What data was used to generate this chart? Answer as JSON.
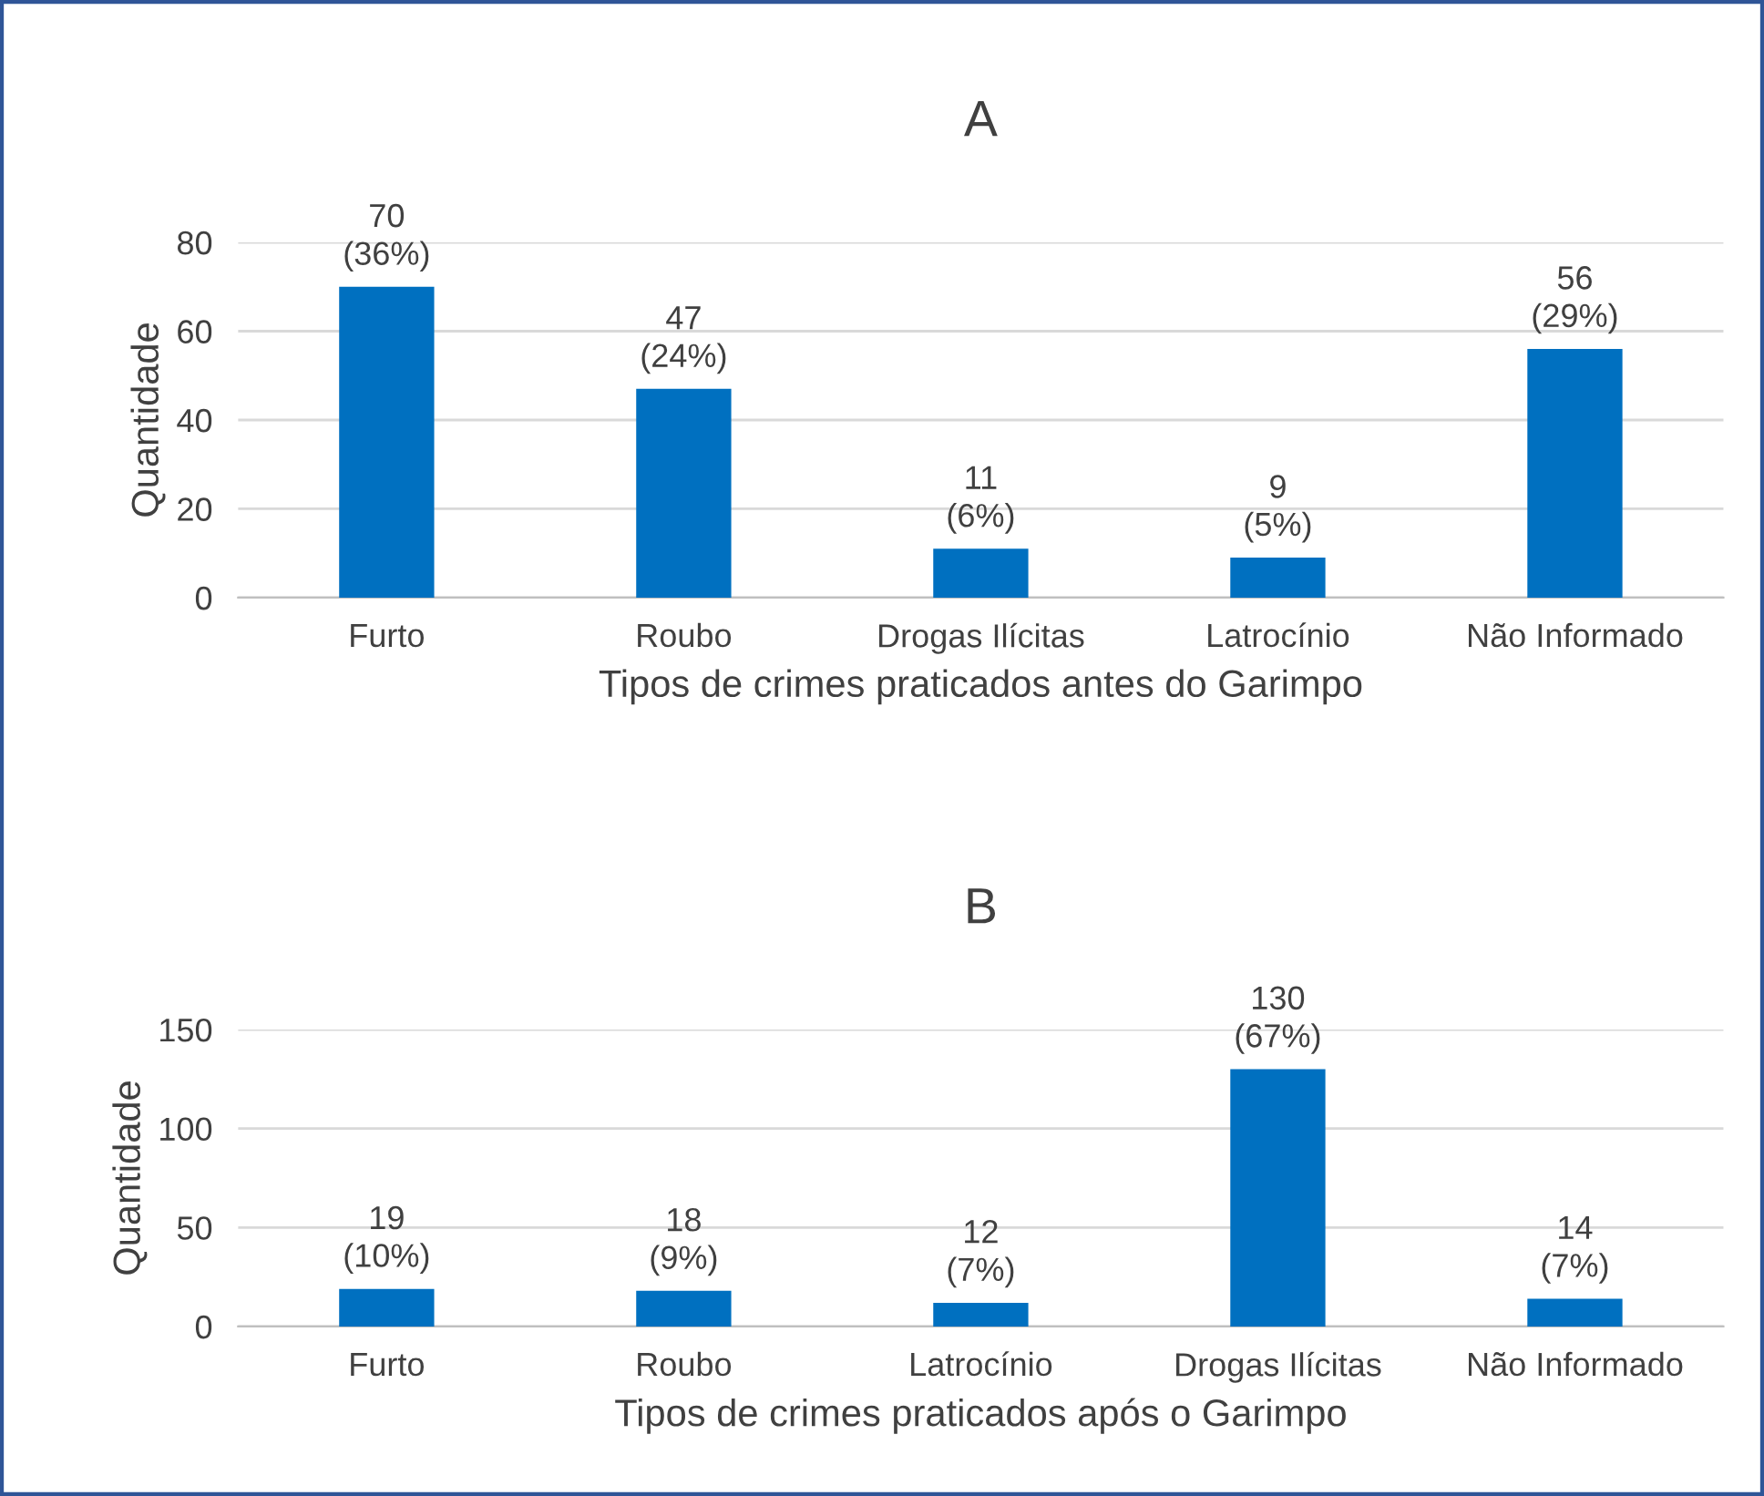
{
  "chart_data": [
    {
      "type": "bar",
      "title": "A",
      "xlabel": "Tipos de crimes praticados antes do Garimpo",
      "ylabel": "Quantidade",
      "categories": [
        "Furto",
        "Roubo",
        "Drogas Ilícitas",
        "Latrocínio",
        "Não Informado"
      ],
      "values": [
        70,
        47,
        11,
        9,
        56
      ],
      "color": "#0070c0",
      "value_labels": [
        "70\n(36%)",
        "47\n(24%)",
        "11\n(6%)",
        "9\n(5%)",
        "56\n(29%)"
      ],
      "ylim": [
        0,
        80
      ],
      "yticks": [
        0,
        20,
        40,
        60,
        80
      ],
      "grid": "y",
      "legend": false
    },
    {
      "type": "bar",
      "title": "B",
      "xlabel": "Tipos de crimes praticados após o Garimpo",
      "ylabel": "Quantidade",
      "categories": [
        "Furto",
        "Roubo",
        "Latrocínio",
        "Drogas Ilícitas",
        "Não Informado"
      ],
      "values": [
        19,
        18,
        12,
        130,
        14
      ],
      "color": "#0070c0",
      "value_labels": [
        "19\n(10%)",
        "18\n(9%)",
        "12\n(7%)",
        "130\n(67%)",
        "14\n(7%)"
      ],
      "ylim": [
        0,
        150
      ],
      "yticks": [
        0,
        50,
        100,
        150
      ],
      "grid": "y",
      "legend": false
    }
  ]
}
